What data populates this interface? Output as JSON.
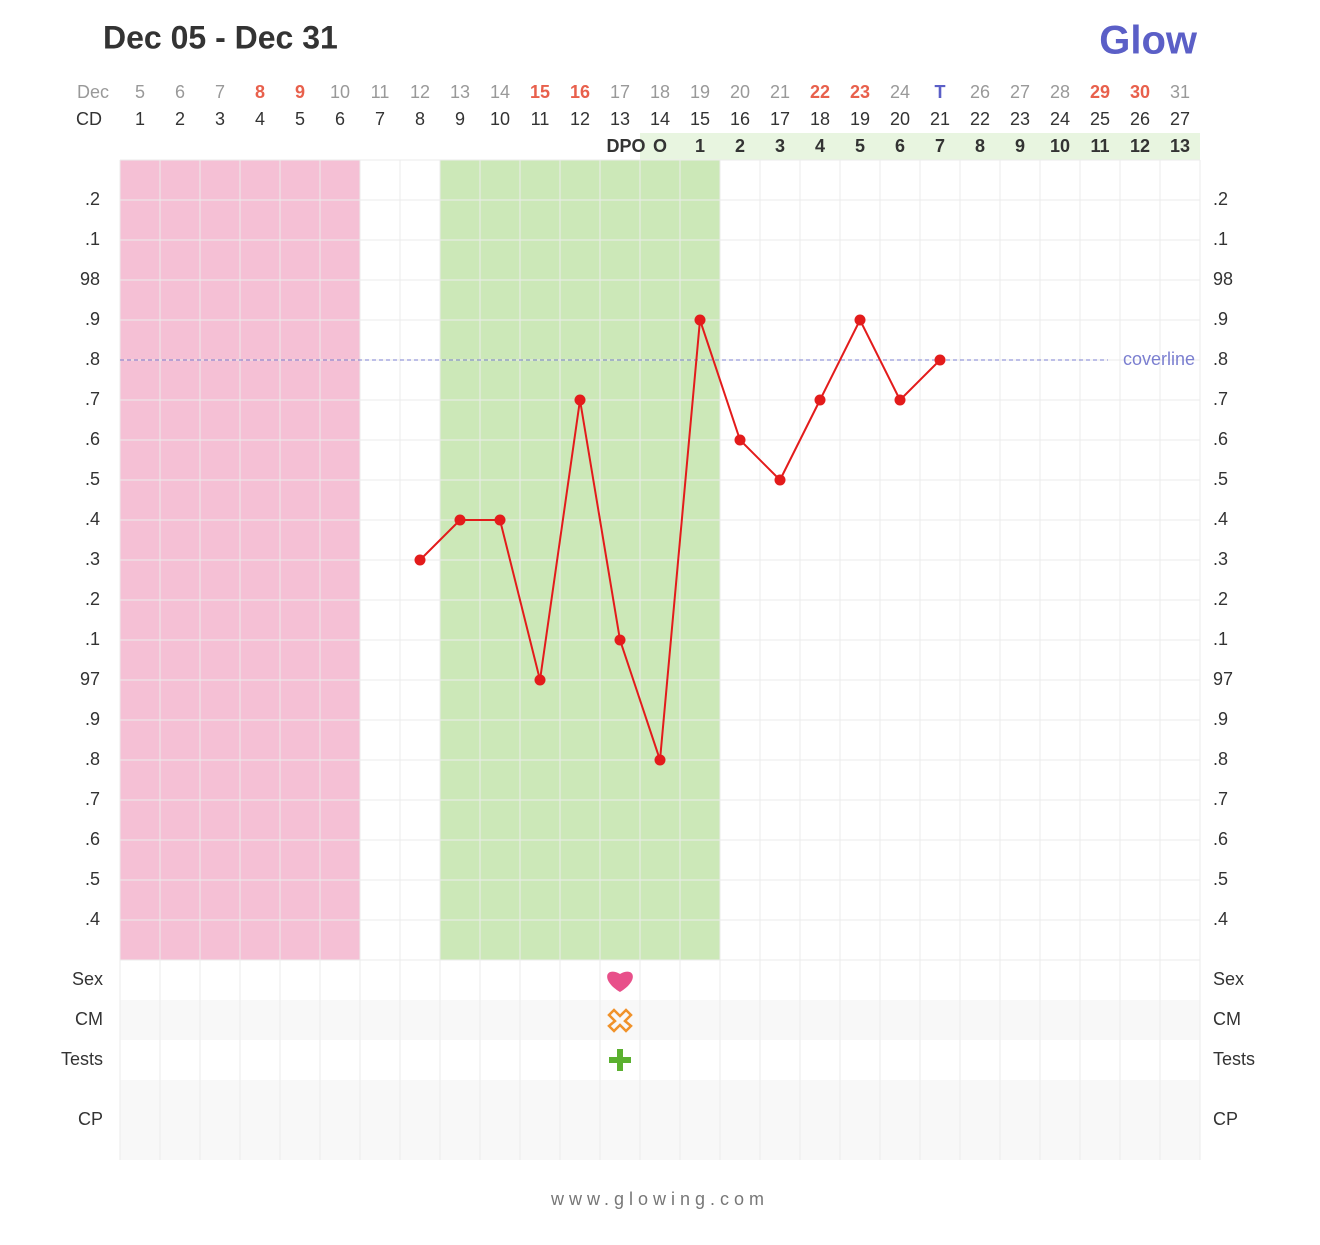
{
  "chart_data": {
    "type": "line",
    "title": "Dec 05 - Dec 31",
    "logo": "Glow",
    "footer": "www.glowing.com",
    "month_label": "Dec",
    "cd_label": "CD",
    "dpo_label": "DPO",
    "days": [
      "5",
      "6",
      "7",
      "8",
      "9",
      "10",
      "11",
      "12",
      "13",
      "14",
      "15",
      "16",
      "17",
      "18",
      "19",
      "20",
      "21",
      "22",
      "23",
      "24",
      "T",
      "26",
      "27",
      "28",
      "29",
      "30",
      "31"
    ],
    "day_colors": [
      "#999",
      "#999",
      "#999",
      "#e8604c",
      "#e8604c",
      "#999",
      "#999",
      "#999",
      "#999",
      "#999",
      "#e8604c",
      "#e8604c",
      "#999",
      "#999",
      "#999",
      "#999",
      "#999",
      "#e8604c",
      "#e8604c",
      "#999",
      "#5b5fc7",
      "#999",
      "#999",
      "#999",
      "#e8604c",
      "#e8604c",
      "#999"
    ],
    "categories": [
      1,
      2,
      3,
      4,
      5,
      6,
      7,
      8,
      9,
      10,
      11,
      12,
      13,
      14,
      15,
      16,
      17,
      18,
      19,
      20,
      21,
      22,
      23,
      24,
      25,
      26,
      27
    ],
    "dpo": [
      null,
      null,
      null,
      null,
      null,
      null,
      null,
      null,
      null,
      null,
      null,
      null,
      null,
      "O",
      1,
      2,
      3,
      4,
      5,
      6,
      7,
      8,
      9,
      10,
      11,
      12,
      13
    ],
    "values": [
      null,
      null,
      null,
      null,
      null,
      null,
      null,
      97.3,
      97.4,
      97.4,
      97.0,
      97.7,
      97.1,
      96.8,
      97.9,
      97.6,
      97.5,
      97.7,
      97.9,
      97.7,
      97.8,
      null,
      null,
      null,
      null,
      null,
      null
    ],
    "color": "#e31b1b",
    "ylim": [
      96.3,
      98.3
    ],
    "yticks": [
      {
        "value": 98.2,
        "label": ".2"
      },
      {
        "value": 98.1,
        "label": ".1"
      },
      98,
      {
        "value": 97.9,
        "label": ".9"
      },
      {
        "value": 97.8,
        "label": ".8"
      },
      {
        "value": 97.7,
        "label": ".7"
      },
      {
        "value": 97.6,
        "label": ".6"
      },
      {
        "value": 97.5,
        "label": ".5"
      },
      {
        "value": 97.4,
        "label": ".4"
      },
      {
        "value": 97.3,
        "label": ".3"
      },
      {
        "value": 97.2,
        "label": ".2"
      },
      {
        "value": 97.1,
        "label": ".1"
      },
      97,
      {
        "value": 96.9,
        "label": ".9"
      },
      {
        "value": 96.8,
        "label": ".8"
      },
      {
        "value": 96.7,
        "label": ".7"
      },
      {
        "value": 96.6,
        "label": ".6"
      },
      {
        "value": 96.5,
        "label": ".5"
      },
      {
        "value": 96.4,
        "label": ".4"
      }
    ],
    "grid": true,
    "coverline": {
      "label": "coverline",
      "value": 97.8,
      "color": "#7b7fd0"
    },
    "bands": [
      {
        "from": 1,
        "to": 6,
        "color": "#f5c0d5"
      },
      {
        "from": 9,
        "to": 15,
        "color": "#cce8b8"
      }
    ],
    "rows": [
      {
        "label": "Sex",
        "marks": [
          13
        ]
      },
      {
        "label": "CM",
        "marks": [
          13
        ]
      },
      {
        "label": "Tests",
        "marks": [
          13
        ]
      },
      {
        "label": "CP",
        "marks": []
      }
    ]
  }
}
